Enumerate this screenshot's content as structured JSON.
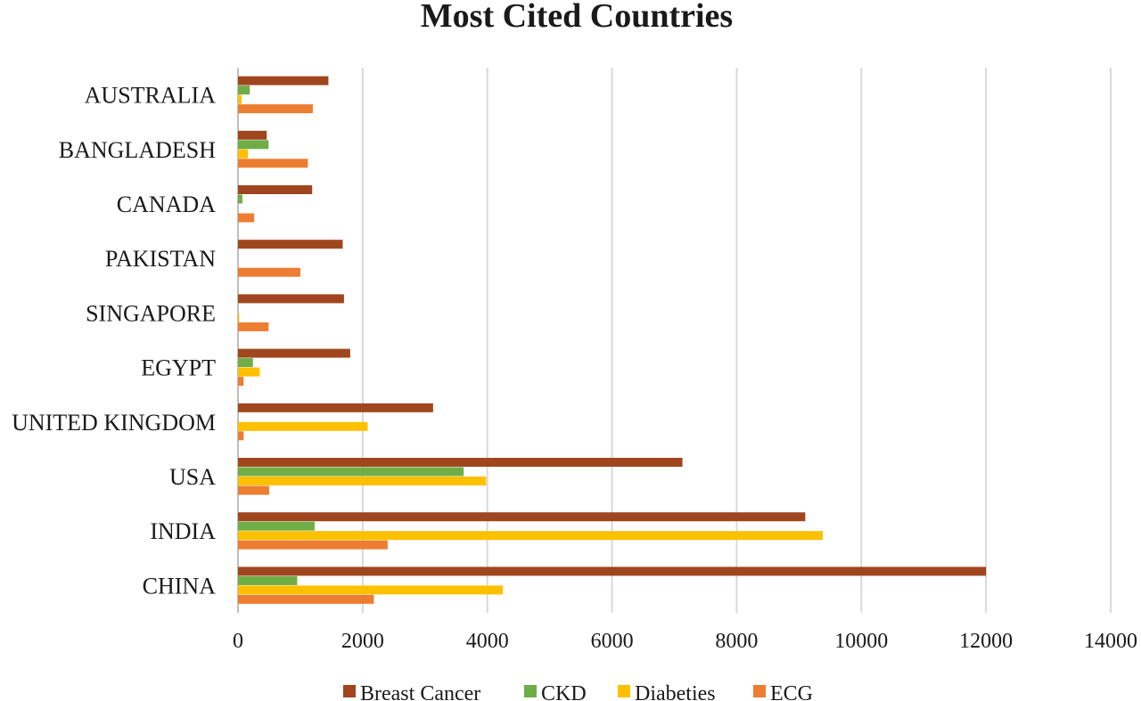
{
  "chart_data": {
    "type": "bar",
    "orientation": "horizontal",
    "title": "Most Cited Countries",
    "categories": [
      "AUSTRALIA",
      "BANGLADESH",
      "CANADA",
      "PAKISTAN",
      "SINGAPORE",
      "EGYPT",
      "UNITED KINGDOM",
      "USA",
      "INDIA",
      "CHINA"
    ],
    "series": [
      {
        "name": "Breast Cancer",
        "color": "#A0461E",
        "values": [
          1450,
          460,
          1190,
          1680,
          1700,
          1800,
          3130,
          7130,
          9100,
          12000
        ]
      },
      {
        "name": "CKD",
        "color": "#70AD47",
        "values": [
          190,
          490,
          70,
          0,
          0,
          240,
          0,
          3620,
          1230,
          950
        ]
      },
      {
        "name": "Diabeties",
        "color": "#FFC000",
        "values": [
          60,
          160,
          0,
          0,
          20,
          350,
          2080,
          3980,
          9380,
          4250
        ]
      },
      {
        "name": "ECG",
        "color": "#ED7D31",
        "values": [
          1200,
          1120,
          260,
          1000,
          490,
          90,
          90,
          500,
          2400,
          2180
        ]
      }
    ],
    "xlim": [
      0,
      14000
    ],
    "xticks": [
      0,
      2000,
      4000,
      6000,
      8000,
      10000,
      12000,
      14000
    ],
    "grid": true,
    "legend_position": "bottom"
  }
}
